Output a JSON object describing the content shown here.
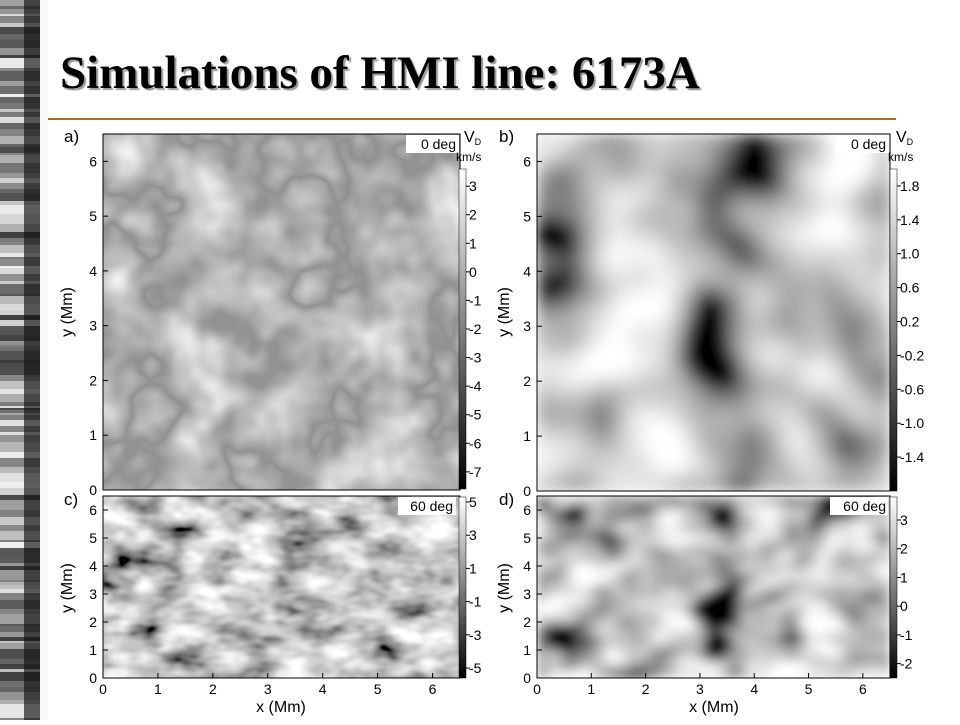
{
  "slide": {
    "title": "Simulations of HMI line: 6173A",
    "accent_color": "#b1682a"
  },
  "chart_data": [
    {
      "type": "heatmap",
      "panel": "a)",
      "angle_label": "0 deg",
      "xlabel": "",
      "ylabel": "y (Mm)",
      "xlim": [
        0,
        6.5
      ],
      "ylim": [
        0,
        6.5
      ],
      "y_ticks": [
        0,
        1,
        2,
        3,
        4,
        5,
        6
      ],
      "colorbar": {
        "title": "V",
        "subscript": "D",
        "unit": "km/s",
        "range": [
          -7.6,
          3.6
        ],
        "ticks": [
          "3",
          "2",
          "1",
          "0",
          "-1",
          "-2",
          "-3",
          "-4",
          "-5",
          "-6",
          "-7"
        ]
      },
      "colormap": "grayscale",
      "pattern": "granulation"
    },
    {
      "type": "heatmap",
      "panel": "b)",
      "angle_label": "0 deg",
      "xlabel": "",
      "ylabel": "y (Mm)",
      "xlim": [
        0,
        6.5
      ],
      "ylim": [
        0,
        6.5
      ],
      "y_ticks": [
        0,
        1,
        2,
        3,
        4,
        5,
        6
      ],
      "colorbar": {
        "title": "V",
        "subscript": "D",
        "unit": "km/s",
        "range": [
          -1.8,
          2.0
        ],
        "ticks": [
          "1.8",
          "1.4",
          "1.0",
          "0.6",
          "0.2",
          "-0.2",
          "-0.6",
          "-1.0",
          "-1.4"
        ]
      },
      "colormap": "grayscale",
      "pattern": "smoothed"
    },
    {
      "type": "heatmap",
      "panel": "c)",
      "angle_label": "60 deg",
      "xlabel": "x (Mm)",
      "ylabel": "y (Mm)",
      "xlim": [
        0,
        6.5
      ],
      "ylim": [
        0,
        6.5
      ],
      "x_ticks": [
        0,
        1,
        2,
        3,
        4,
        5,
        6
      ],
      "y_ticks": [
        0,
        1,
        2,
        3,
        4,
        5,
        6
      ],
      "colorbar": {
        "title": "",
        "subscript": "",
        "unit": "",
        "range": [
          -5.6,
          5.3
        ],
        "ticks": [
          "5",
          "3",
          "1",
          "-1",
          "-3",
          "-5"
        ]
      },
      "colormap": "grayscale",
      "pattern": "granulation-inclined"
    },
    {
      "type": "heatmap",
      "panel": "d)",
      "angle_label": "60 deg",
      "xlabel": "x (Mm)",
      "ylabel": "y (Mm)",
      "xlim": [
        0,
        6.5
      ],
      "ylim": [
        0,
        6.5
      ],
      "x_ticks": [
        0,
        1,
        2,
        3,
        4,
        5,
        6
      ],
      "y_ticks": [
        0,
        1,
        2,
        3,
        4,
        5,
        6
      ],
      "colorbar": {
        "title": "",
        "subscript": "",
        "unit": "",
        "range": [
          -2.5,
          3.8
        ],
        "ticks": [
          "3",
          "2",
          "1",
          "0",
          "-1",
          "-2"
        ]
      },
      "colormap": "grayscale",
      "pattern": "smoothed-inclined"
    }
  ]
}
